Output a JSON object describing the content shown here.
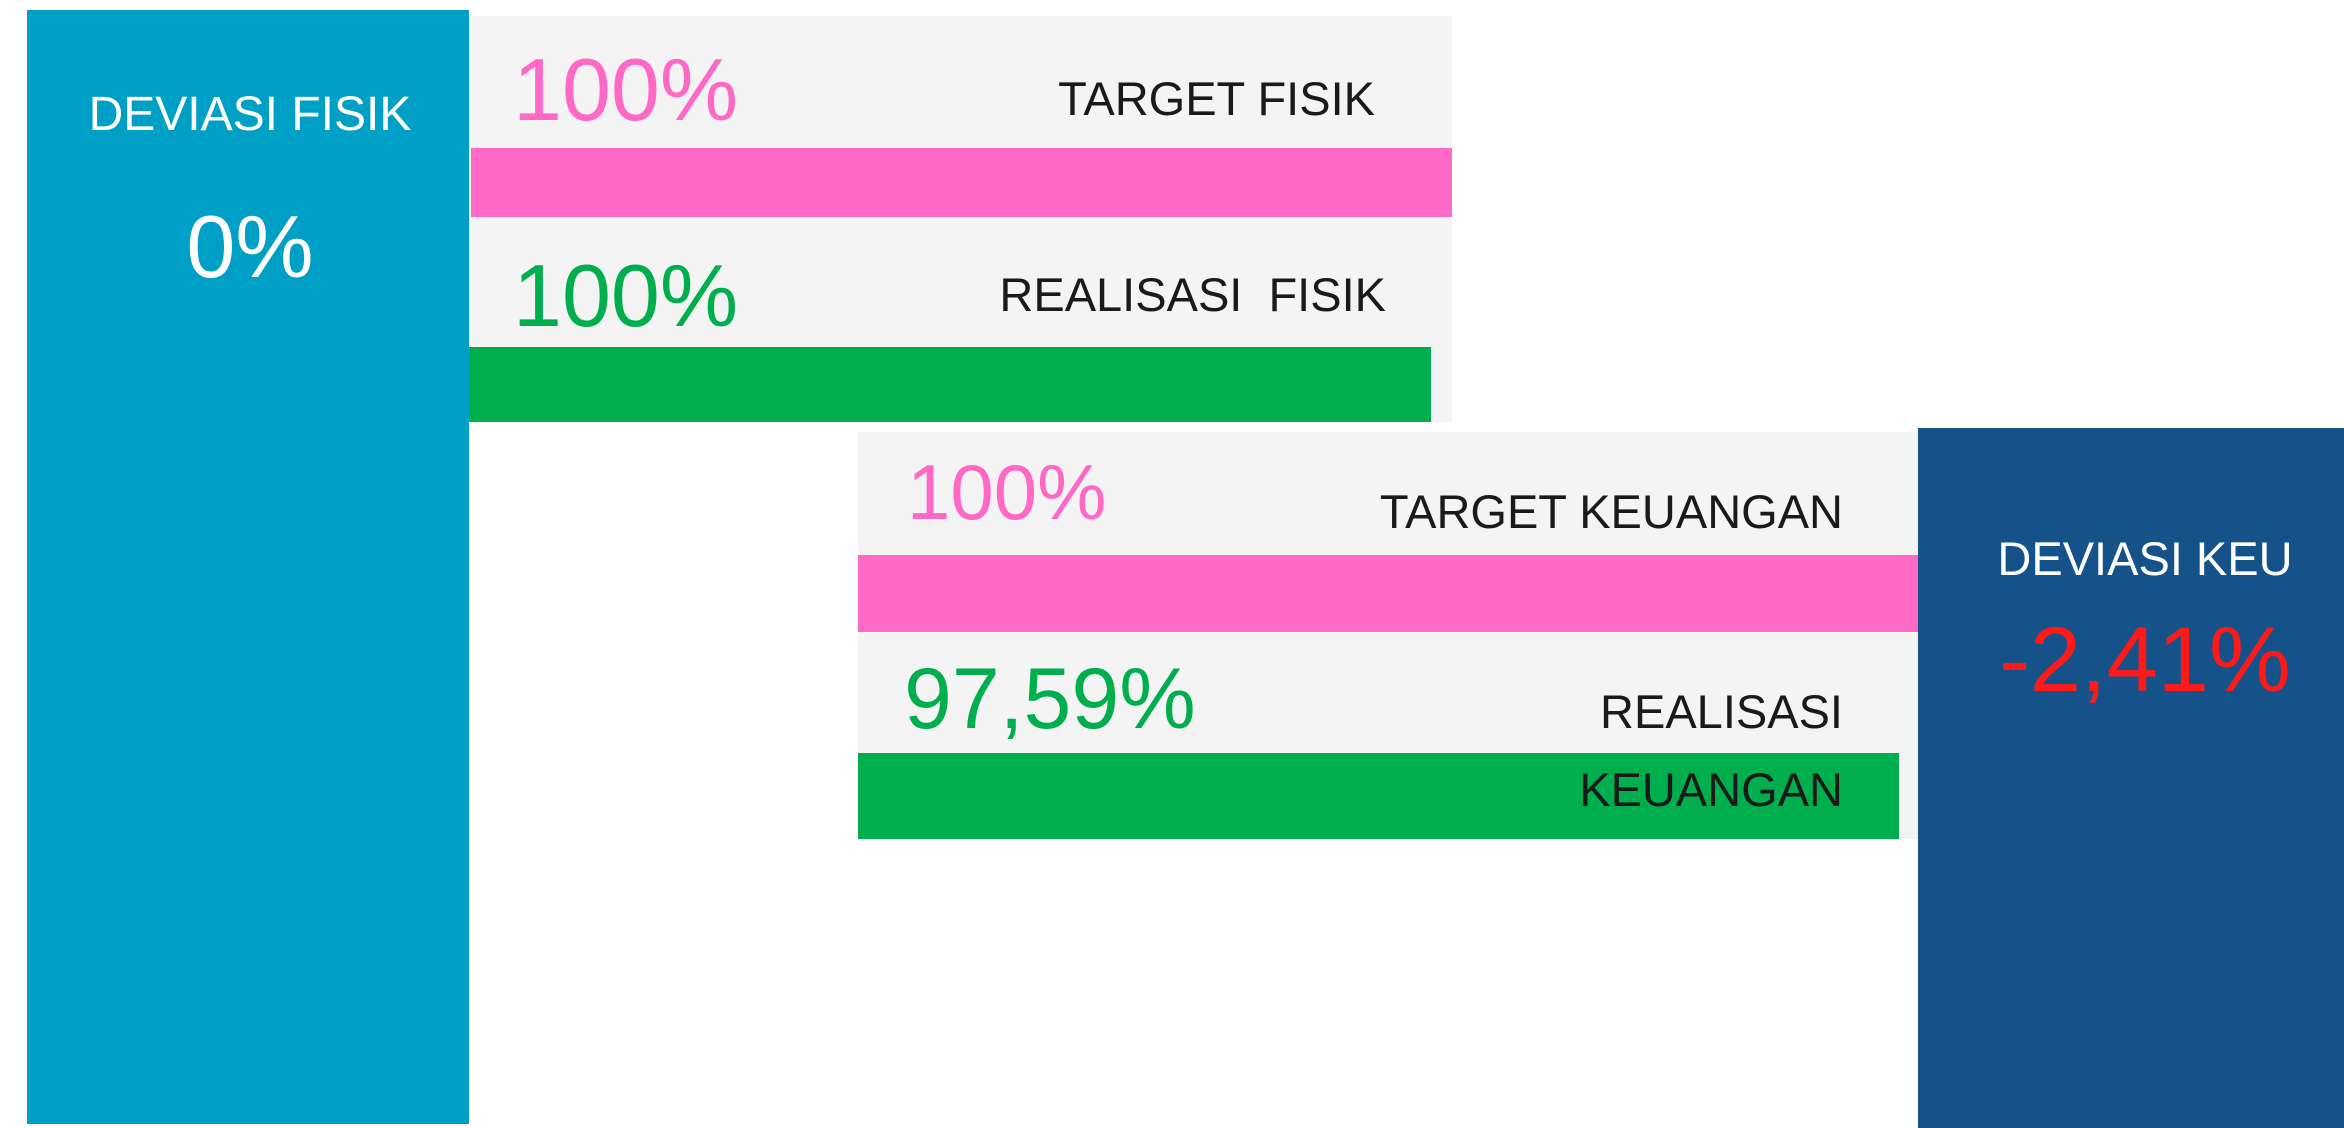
{
  "deviasi_fisik": {
    "label": "DEVIASI FISIK",
    "value": "0%"
  },
  "fisik": {
    "target": {
      "value": "100%",
      "label": "TARGET FISIK"
    },
    "realisasi": {
      "value": "100%",
      "label": "REALISASI  FISIK"
    }
  },
  "keuangan": {
    "target": {
      "value": "100%",
      "label": "TARGET KEUANGAN"
    },
    "realisasi": {
      "value": "97,59%",
      "label": [
        "REALISASI",
        "KEUANGAN"
      ]
    }
  },
  "deviasi_keu": {
    "label": "DEVIASI KEU",
    "value": "-2,41%"
  }
}
